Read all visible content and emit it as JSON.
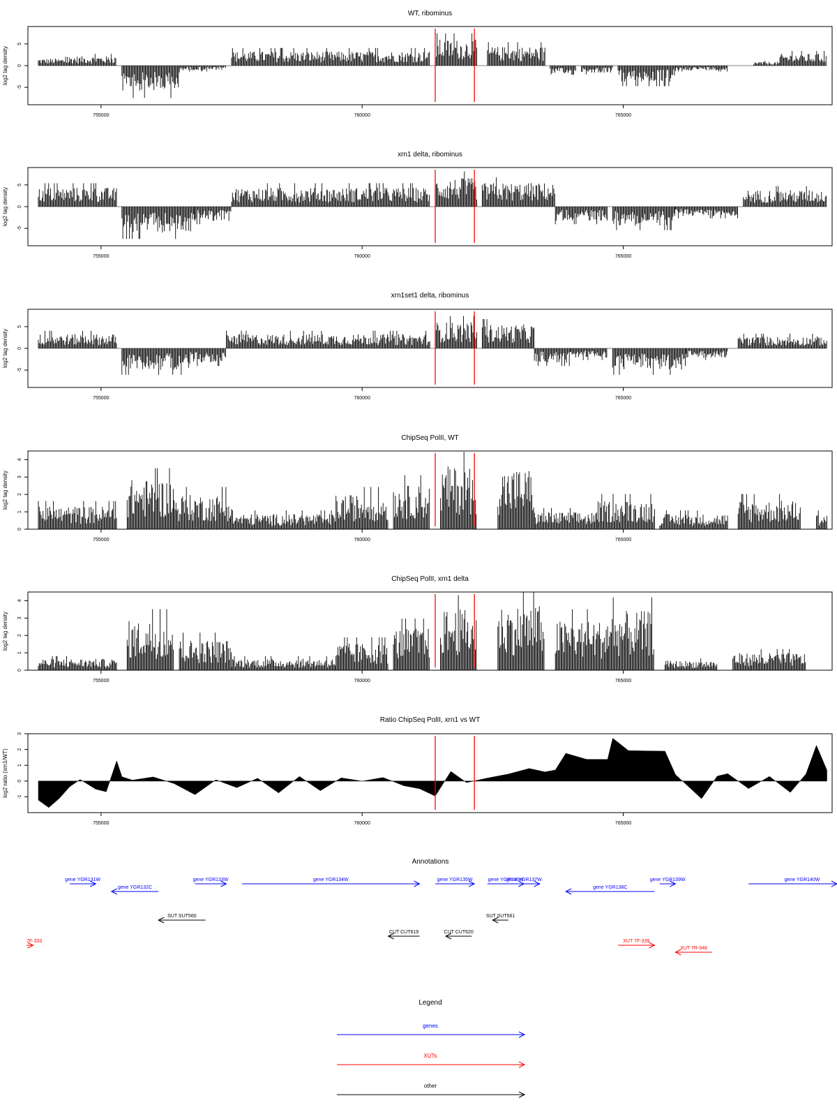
{
  "chart_data": [
    {
      "type": "bar",
      "title": "WT, ribominus",
      "ylabel": "log2 tag density",
      "xlim": [
        753600,
        769000
      ],
      "ylim": [
        -9,
        9
      ],
      "yticks": [
        5,
        0,
        -5
      ],
      "xticks": [
        755000,
        760000,
        765000
      ],
      "marker_lines": [
        761400,
        762150
      ],
      "profile": [
        {
          "x": [
            753800,
            754400
          ],
          "v": 1.5
        },
        {
          "x": [
            754400,
            755300
          ],
          "v": 2.0
        },
        {
          "x": [
            755400,
            756500
          ],
          "v": -5.5
        },
        {
          "x": [
            756500,
            757400
          ],
          "v": -1.0
        },
        {
          "x": [
            757500,
            761300
          ],
          "v": 3.0
        },
        {
          "x": [
            761400,
            762200
          ],
          "v": 5.5
        },
        {
          "x": [
            762400,
            763500
          ],
          "v": 4.0
        },
        {
          "x": [
            763600,
            764100
          ],
          "v": -2.0
        },
        {
          "x": [
            764200,
            764800
          ],
          "v": -1.5
        },
        {
          "x": [
            764900,
            766000
          ],
          "v": -3.5
        },
        {
          "x": [
            766000,
            767000
          ],
          "v": -1.0
        },
        {
          "x": [
            767500,
            768000
          ],
          "v": 0.8
        },
        {
          "x": [
            768000,
            768900
          ],
          "v": 2.5
        }
      ]
    },
    {
      "type": "bar",
      "title": "xrn1 delta, ribominus",
      "ylabel": "log2 tag density",
      "xlim": [
        753600,
        769000
      ],
      "ylim": [
        -9,
        9
      ],
      "yticks": [
        5,
        0,
        -5
      ],
      "xticks": [
        755000,
        760000,
        765000
      ],
      "marker_lines": [
        761400,
        762150
      ],
      "profile": [
        {
          "x": [
            753800,
            755300
          ],
          "v": 4.0
        },
        {
          "x": [
            755400,
            756800
          ],
          "v": -5.5
        },
        {
          "x": [
            756800,
            757500
          ],
          "v": -3.0
        },
        {
          "x": [
            757500,
            761300
          ],
          "v": 4.0
        },
        {
          "x": [
            761400,
            762200
          ],
          "v": 6.0
        },
        {
          "x": [
            762300,
            763700
          ],
          "v": 5.0
        },
        {
          "x": [
            763700,
            764700
          ],
          "v": -3.0
        },
        {
          "x": [
            764800,
            766000
          ],
          "v": -4.0
        },
        {
          "x": [
            766000,
            767200
          ],
          "v": -2.0
        },
        {
          "x": [
            767300,
            768900
          ],
          "v": 3.5
        }
      ]
    },
    {
      "type": "bar",
      "title": "xrn1set1 delta, ribominus",
      "ylabel": "log2 tag density",
      "xlim": [
        753600,
        769000
      ],
      "ylim": [
        -9,
        9
      ],
      "yticks": [
        5,
        0,
        -5
      ],
      "xticks": [
        755000,
        760000,
        765000
      ],
      "marker_lines": [
        761400,
        762150
      ],
      "profile": [
        {
          "x": [
            753800,
            755300
          ],
          "v": 3.0
        },
        {
          "x": [
            755400,
            756700
          ],
          "v": -4.5
        },
        {
          "x": [
            756700,
            757400
          ],
          "v": -3.0
        },
        {
          "x": [
            757400,
            761300
          ],
          "v": 3.0
        },
        {
          "x": [
            761400,
            762200
          ],
          "v": 5.5
        },
        {
          "x": [
            762300,
            763300
          ],
          "v": 5.0
        },
        {
          "x": [
            763300,
            764000
          ],
          "v": -3.0
        },
        {
          "x": [
            764000,
            764700
          ],
          "v": -2.0
        },
        {
          "x": [
            764800,
            766200
          ],
          "v": -4.5
        },
        {
          "x": [
            766200,
            767000
          ],
          "v": -2.0
        },
        {
          "x": [
            767200,
            768900
          ],
          "v": 2.5
        }
      ]
    },
    {
      "type": "bar",
      "title": "ChipSeq PolII, WT",
      "ylabel": "log2 tag density",
      "xlim": [
        753600,
        769000
      ],
      "ylim": [
        0,
        4.5
      ],
      "yticks": [
        0,
        1,
        2,
        3,
        4
      ],
      "xticks": [
        755000,
        760000,
        765000
      ],
      "marker_lines": [
        761400,
        762150
      ],
      "profile": [
        {
          "x": [
            753800,
            755300
          ],
          "v": 1.2
        },
        {
          "x": [
            755500,
            756400
          ],
          "v": 2.6
        },
        {
          "x": [
            756400,
            757500
          ],
          "v": 1.8
        },
        {
          "x": [
            757500,
            759500
          ],
          "v": 0.8
        },
        {
          "x": [
            759500,
            760500
          ],
          "v": 1.8
        },
        {
          "x": [
            760600,
            761300
          ],
          "v": 2.3
        },
        {
          "x": [
            761500,
            762200
          ],
          "v": 3.3
        },
        {
          "x": [
            762600,
            763300
          ],
          "v": 3.2
        },
        {
          "x": [
            763300,
            764500
          ],
          "v": 0.9
        },
        {
          "x": [
            764500,
            765600
          ],
          "v": 1.5
        },
        {
          "x": [
            765700,
            767000
          ],
          "v": 0.8
        },
        {
          "x": [
            767200,
            768400
          ],
          "v": 1.5
        },
        {
          "x": [
            768700,
            768900
          ],
          "v": 0.8
        }
      ]
    },
    {
      "type": "bar",
      "title": "ChipSeq PolII, xrn1 delta",
      "ylabel": "log2 tag density",
      "xlim": [
        753600,
        769000
      ],
      "ylim": [
        0,
        4.5
      ],
      "yticks": [
        0,
        1,
        2,
        3,
        4
      ],
      "xticks": [
        755000,
        760000,
        765000
      ],
      "marker_lines": [
        761400,
        762150
      ],
      "profile": [
        {
          "x": [
            753800,
            755300
          ],
          "v": 0.6
        },
        {
          "x": [
            755500,
            756400
          ],
          "v": 2.6
        },
        {
          "x": [
            756500,
            757500
          ],
          "v": 1.6
        },
        {
          "x": [
            757500,
            759500
          ],
          "v": 0.6
        },
        {
          "x": [
            759500,
            760500
          ],
          "v": 1.4
        },
        {
          "x": [
            760600,
            761300
          ],
          "v": 2.2
        },
        {
          "x": [
            761500,
            762200
          ],
          "v": 3.2
        },
        {
          "x": [
            762600,
            763500
          ],
          "v": 3.4
        },
        {
          "x": [
            763700,
            764700
          ],
          "v": 2.6
        },
        {
          "x": [
            764700,
            765600
          ],
          "v": 3.1
        },
        {
          "x": [
            765800,
            766800
          ],
          "v": 0.5
        },
        {
          "x": [
            767100,
            768500
          ],
          "v": 0.9
        }
      ]
    },
    {
      "type": "area",
      "title": "Ratio ChipSeq PolII, xrn1 vs WT",
      "ylabel": "log2 ratio (xrn1/WT)",
      "xlim": [
        753600,
        769000
      ],
      "ylim": [
        -2,
        3
      ],
      "yticks": [
        -1,
        0,
        1,
        2,
        3
      ],
      "xticks": [
        755000,
        760000,
        765000
      ],
      "marker_lines": [
        761400,
        762150
      ],
      "x": [
        753800,
        754000,
        754200,
        754400,
        754600,
        754900,
        755100,
        755300,
        755400,
        755600,
        756000,
        756400,
        756800,
        757200,
        757600,
        758000,
        758400,
        758800,
        759200,
        759600,
        760000,
        760400,
        760800,
        761100,
        761400,
        761700,
        762000,
        762400,
        762800,
        763200,
        763500,
        763700,
        763900,
        764300,
        764700,
        764800,
        765100,
        765500,
        765800,
        766000,
        766200,
        766500,
        766800,
        767000,
        767400,
        767800,
        768200,
        768500,
        768700,
        768900
      ],
      "y": [
        -1.2,
        -1.6,
        -1.0,
        -0.3,
        0.2,
        -0.4,
        -0.8,
        1.2,
        0.2,
        0.1,
        0.3,
        -0.2,
        -0.9,
        0.1,
        -0.4,
        0.2,
        -0.7,
        0.3,
        -0.5,
        0.2,
        -0.1,
        0.3,
        -0.3,
        -0.6,
        -1.0,
        0.5,
        -0.2,
        0.3,
        0.5,
        0.7,
        0.5,
        0.6,
        1.7,
        1.5,
        1.4,
        2.7,
        2.0,
        2.0,
        2.0,
        0.5,
        -0.2,
        -1.0,
        0.2,
        0.4,
        -0.5,
        0.3,
        -0.6,
        0.4,
        2.2,
        0.8
      ]
    }
  ],
  "annotations": {
    "title": "Annotations",
    "xlim": [
      753600,
      769000
    ],
    "items": [
      {
        "label": "gene YGR131W",
        "start": 754400,
        "end": 754900,
        "strand": "+",
        "row": 0,
        "color": "#0000ff"
      },
      {
        "label": "gene YGR132C",
        "start": 755200,
        "end": 756100,
        "strand": "-",
        "row": 1,
        "color": "#0000ff"
      },
      {
        "label": "gene YGR133W",
        "start": 756800,
        "end": 757400,
        "strand": "+",
        "row": 0,
        "color": "#0000ff"
      },
      {
        "label": "gene YGR134W",
        "start": 757700,
        "end": 761100,
        "strand": "+",
        "row": 0,
        "color": "#0000ff"
      },
      {
        "label": "gene YGR135W",
        "start": 761400,
        "end": 762150,
        "strand": "+",
        "row": 0,
        "color": "#0000ff"
      },
      {
        "label": "gene YGR136W",
        "start": 762400,
        "end": 763100,
        "strand": "+",
        "row": 0,
        "color": "#0000ff"
      },
      {
        "label": "gene YGR137W",
        "start": 762800,
        "end": 763400,
        "strand": "+",
        "row": 0,
        "color": "#0000ff"
      },
      {
        "label": "gene YGR138C",
        "start": 763900,
        "end": 765600,
        "strand": "-",
        "row": 1,
        "color": "#0000ff"
      },
      {
        "label": "gene YGR139W",
        "start": 765700,
        "end": 766000,
        "strand": "+",
        "row": 0,
        "color": "#0000ff"
      },
      {
        "label": "gene YGR140W",
        "start": 767400,
        "end": 769600,
        "strand": "+",
        "row": 0,
        "color": "#0000ff"
      },
      {
        "label": "SUT SUT560",
        "start": 756100,
        "end": 757000,
        "strand": "-",
        "row": 2,
        "color": "#000000"
      },
      {
        "label": "SUT SUT561",
        "start": 762500,
        "end": 762800,
        "strand": "-",
        "row": 2,
        "color": "#000000"
      },
      {
        "label": "CUT CUT619",
        "start": 760500,
        "end": 761100,
        "strand": "-",
        "row": 3,
        "color": "#000000"
      },
      {
        "label": "CUT CUT620",
        "start": 761600,
        "end": 762100,
        "strand": "-",
        "row": 3,
        "color": "#000000"
      },
      {
        "label": "7F-333",
        "start": 752900,
        "end": 753700,
        "strand": "+",
        "row": 4,
        "color": "#ff0000"
      },
      {
        "label": "XUT 7F-339",
        "start": 764900,
        "end": 765600,
        "strand": "+",
        "row": 4,
        "color": "#ff0000"
      },
      {
        "label": "XUT 7R-348",
        "start": 766000,
        "end": 766700,
        "strand": "-",
        "row": 5,
        "color": "#ff0000"
      }
    ]
  },
  "legend": {
    "title": "Legend",
    "items": [
      {
        "label": "genes",
        "color": "#0000ff"
      },
      {
        "label": "XUTs",
        "color": "#ff0000"
      },
      {
        "label": "other",
        "color": "#000000"
      }
    ]
  }
}
